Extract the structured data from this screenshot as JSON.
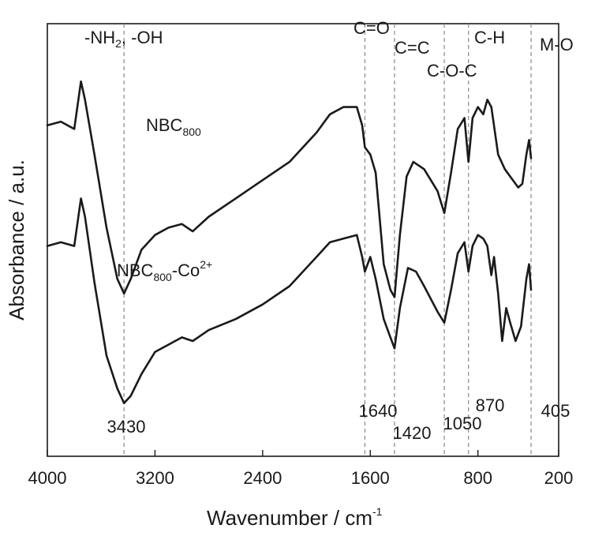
{
  "chart_data": {
    "type": "line",
    "xlabel": "Wavenumber / cm",
    "xlabel_sup": "-1",
    "ylabel": "Absorbance / a.u.",
    "xlim": [
      4000,
      200
    ],
    "x_reversed": true,
    "x_ticks": [
      4000,
      3200,
      2400,
      1600,
      800,
      200
    ],
    "y_ticks": [],
    "grid": false,
    "colors": {
      "line": "#1a1a1a",
      "ref_line": "#888888"
    },
    "ref_lines": [
      {
        "x": 3430,
        "label": "3430"
      },
      {
        "x": 1640,
        "label": "1640"
      },
      {
        "x": 1420,
        "label": "1420"
      },
      {
        "x": 1050,
        "label": "1050"
      },
      {
        "x": 870,
        "label": "870"
      },
      {
        "x": 405,
        "label": "405"
      }
    ],
    "annotations": [
      {
        "text": "C=O"
      },
      {
        "text": "C=C"
      },
      {
        "text": "C-O-C"
      },
      {
        "text": "C-H"
      },
      {
        "text": "M-O"
      }
    ],
    "annotation_nh": {
      "prefix": "-NH",
      "sub": "2",
      "suffix": ", -OH"
    },
    "series": [
      {
        "name_main": "NBC",
        "name_sub": "800",
        "name_sup": "",
        "points": [
          [
            4000,
            0.78
          ],
          [
            3900,
            0.79
          ],
          [
            3800,
            0.77
          ],
          [
            3750,
            0.9
          ],
          [
            3720,
            0.85
          ],
          [
            3650,
            0.7
          ],
          [
            3560,
            0.5
          ],
          [
            3480,
            0.36
          ],
          [
            3430,
            0.32
          ],
          [
            3380,
            0.36
          ],
          [
            3300,
            0.44
          ],
          [
            3200,
            0.48
          ],
          [
            3100,
            0.5
          ],
          [
            3000,
            0.51
          ],
          [
            2920,
            0.49
          ],
          [
            2800,
            0.53
          ],
          [
            2600,
            0.58
          ],
          [
            2400,
            0.63
          ],
          [
            2200,
            0.68
          ],
          [
            2000,
            0.76
          ],
          [
            1900,
            0.81
          ],
          [
            1800,
            0.83
          ],
          [
            1700,
            0.83
          ],
          [
            1660,
            0.78
          ],
          [
            1640,
            0.72
          ],
          [
            1600,
            0.7
          ],
          [
            1560,
            0.65
          ],
          [
            1500,
            0.4
          ],
          [
            1450,
            0.33
          ],
          [
            1420,
            0.31
          ],
          [
            1380,
            0.48
          ],
          [
            1330,
            0.64
          ],
          [
            1280,
            0.68
          ],
          [
            1200,
            0.66
          ],
          [
            1100,
            0.6
          ],
          [
            1050,
            0.54
          ],
          [
            1000,
            0.65
          ],
          [
            950,
            0.77
          ],
          [
            900,
            0.8
          ],
          [
            870,
            0.68
          ],
          [
            840,
            0.8
          ],
          [
            800,
            0.83
          ],
          [
            760,
            0.81
          ],
          [
            730,
            0.85
          ],
          [
            700,
            0.83
          ],
          [
            650,
            0.7
          ],
          [
            600,
            0.66
          ],
          [
            560,
            0.64
          ],
          [
            500,
            0.61
          ],
          [
            470,
            0.62
          ],
          [
            440,
            0.7
          ],
          [
            420,
            0.74
          ],
          [
            405,
            0.69
          ]
        ]
      },
      {
        "name_main": "NBC",
        "name_sub": "800",
        "name_sup": "2+",
        "name_mid": "-Co",
        "points": [
          [
            4000,
            0.45
          ],
          [
            3900,
            0.46
          ],
          [
            3800,
            0.45
          ],
          [
            3750,
            0.58
          ],
          [
            3720,
            0.53
          ],
          [
            3650,
            0.35
          ],
          [
            3560,
            0.15
          ],
          [
            3480,
            0.06
          ],
          [
            3430,
            0.02
          ],
          [
            3380,
            0.04
          ],
          [
            3300,
            0.1
          ],
          [
            3200,
            0.16
          ],
          [
            3100,
            0.18
          ],
          [
            3000,
            0.2
          ],
          [
            2920,
            0.19
          ],
          [
            2800,
            0.22
          ],
          [
            2600,
            0.25
          ],
          [
            2400,
            0.29
          ],
          [
            2200,
            0.34
          ],
          [
            2000,
            0.42
          ],
          [
            1900,
            0.46
          ],
          [
            1800,
            0.47
          ],
          [
            1700,
            0.48
          ],
          [
            1660,
            0.42
          ],
          [
            1640,
            0.38
          ],
          [
            1600,
            0.42
          ],
          [
            1560,
            0.36
          ],
          [
            1500,
            0.25
          ],
          [
            1450,
            0.2
          ],
          [
            1420,
            0.17
          ],
          [
            1380,
            0.28
          ],
          [
            1320,
            0.39
          ],
          [
            1260,
            0.38
          ],
          [
            1200,
            0.34
          ],
          [
            1100,
            0.27
          ],
          [
            1050,
            0.24
          ],
          [
            1000,
            0.33
          ],
          [
            950,
            0.43
          ],
          [
            900,
            0.46
          ],
          [
            870,
            0.38
          ],
          [
            840,
            0.45
          ],
          [
            800,
            0.48
          ],
          [
            760,
            0.47
          ],
          [
            730,
            0.45
          ],
          [
            700,
            0.37
          ],
          [
            680,
            0.42
          ],
          [
            650,
            0.32
          ],
          [
            620,
            0.19
          ],
          [
            590,
            0.28
          ],
          [
            560,
            0.24
          ],
          [
            520,
            0.19
          ],
          [
            480,
            0.23
          ],
          [
            440,
            0.36
          ],
          [
            420,
            0.4
          ],
          [
            405,
            0.33
          ]
        ]
      }
    ]
  }
}
